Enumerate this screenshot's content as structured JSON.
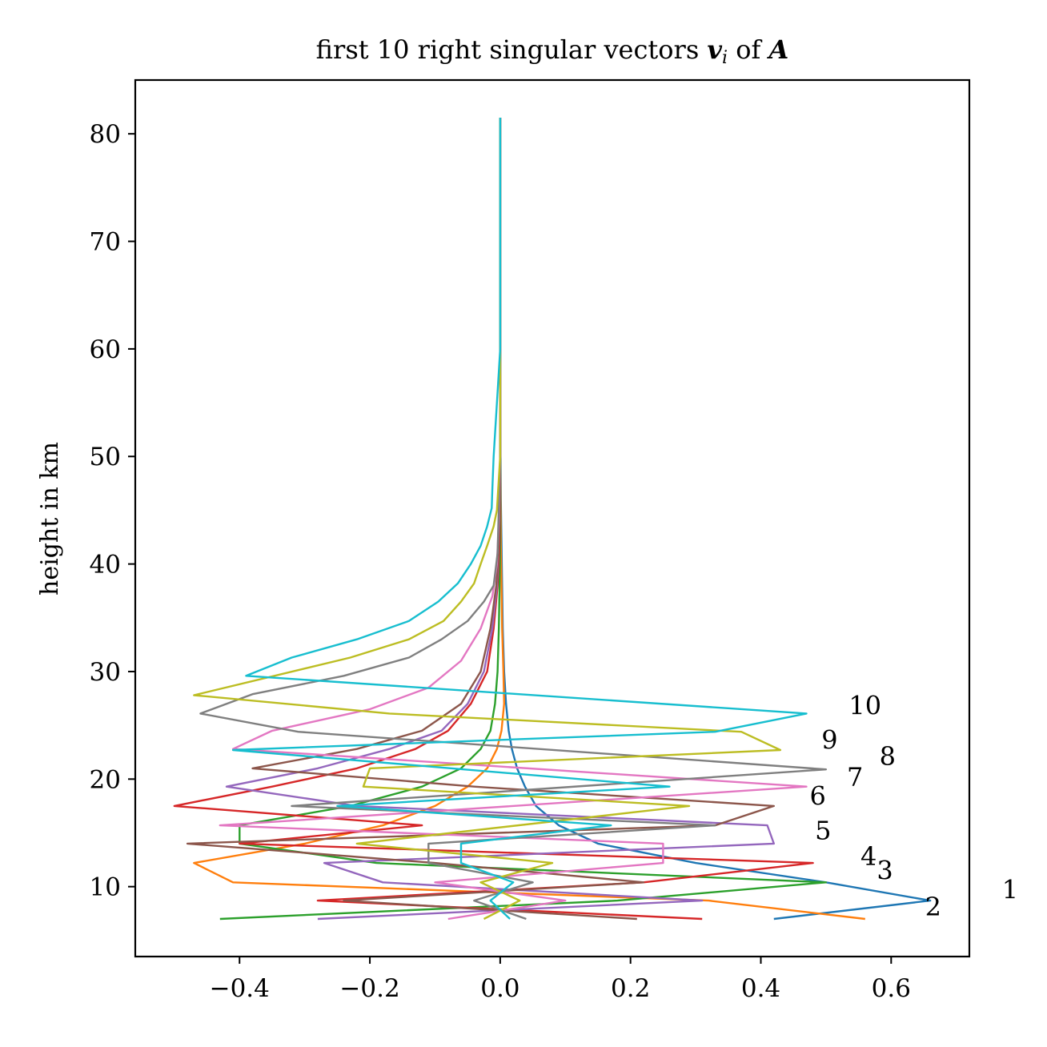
{
  "chart_data": {
    "type": "line",
    "title": "first 10 right singular vectors v_i of A",
    "title_parts": {
      "pre": "first 10 right singular vectors ",
      "v": "v",
      "i": "i",
      "mid": " of ",
      "A": "A"
    },
    "xlabel": "",
    "ylabel": "height in km",
    "xlim": [
      -0.56,
      0.72
    ],
    "ylim": [
      3.5,
      85
    ],
    "xticks": [
      -0.4,
      -0.2,
      0.0,
      0.2,
      0.4,
      0.6
    ],
    "xtick_labels": [
      "−0.4",
      "−0.2",
      "0.0",
      "0.2",
      "0.4",
      "0.6"
    ],
    "yticks": [
      10,
      20,
      30,
      40,
      50,
      60,
      70,
      80
    ],
    "ytick_labels": [
      "10",
      "20",
      "30",
      "40",
      "50",
      "60",
      "70",
      "80"
    ],
    "grid": false,
    "legend": "none",
    "series": [
      {
        "label": "1",
        "color": "#1f77b4",
        "label_pos": [
          0.77,
          8.9
        ],
        "points": [
          [
            0.42,
            7.0
          ],
          [
            0.66,
            8.7
          ],
          [
            0.5,
            10.4
          ],
          [
            0.3,
            12.2
          ],
          [
            0.15,
            14.0
          ],
          [
            0.09,
            15.7
          ],
          [
            0.055,
            17.5
          ],
          [
            0.038,
            19.3
          ],
          [
            0.026,
            21.0
          ],
          [
            0.018,
            22.8
          ],
          [
            0.013,
            24.5
          ],
          [
            0.009,
            27
          ],
          [
            0.006,
            30
          ],
          [
            0.004,
            34
          ],
          [
            0.003,
            38
          ],
          [
            0.002,
            42
          ],
          [
            0.001,
            46
          ],
          [
            0.0005,
            50
          ],
          [
            0.0003,
            55
          ],
          [
            0.0001,
            62
          ],
          [
            0,
            70
          ],
          [
            0,
            81.5
          ]
        ]
      },
      {
        "label": "2",
        "color": "#ff7f0e",
        "label_pos": [
          0.652,
          7.3
        ],
        "points": [
          [
            0.56,
            7.0
          ],
          [
            0.32,
            8.7
          ],
          [
            -0.41,
            10.4
          ],
          [
            -0.47,
            12.2
          ],
          [
            -0.3,
            14.0
          ],
          [
            -0.18,
            15.7
          ],
          [
            -0.1,
            17.5
          ],
          [
            -0.05,
            19.3
          ],
          [
            -0.02,
            21.0
          ],
          [
            -0.005,
            22.8
          ],
          [
            0.002,
            24.5
          ],
          [
            0.006,
            27
          ],
          [
            0.005,
            30
          ],
          [
            0.003,
            34
          ],
          [
            0.002,
            38
          ],
          [
            0.001,
            42
          ],
          [
            0.0005,
            46
          ],
          [
            0,
            50
          ],
          [
            0,
            60
          ],
          [
            0,
            81.5
          ]
        ]
      },
      {
        "label": "3",
        "color": "#2ca02c",
        "label_pos": [
          0.578,
          10.7
        ],
        "points": [
          [
            -0.43,
            7.0
          ],
          [
            0.18,
            8.7
          ],
          [
            0.5,
            10.4
          ],
          [
            -0.19,
            12.2
          ],
          [
            -0.4,
            14.0
          ],
          [
            -0.4,
            15.7
          ],
          [
            -0.23,
            17.5
          ],
          [
            -0.12,
            19.3
          ],
          [
            -0.06,
            21.0
          ],
          [
            -0.03,
            22.8
          ],
          [
            -0.015,
            24.5
          ],
          [
            -0.008,
            27
          ],
          [
            -0.004,
            30
          ],
          [
            -0.002,
            34
          ],
          [
            -0.001,
            38
          ],
          [
            0,
            42
          ],
          [
            0,
            50
          ],
          [
            0,
            81.5
          ]
        ]
      },
      {
        "label": "4",
        "color": "#d62728",
        "label_pos": [
          0.553,
          12.0
        ],
        "points": [
          [
            0.31,
            7.0
          ],
          [
            -0.28,
            8.7
          ],
          [
            0.22,
            10.4
          ],
          [
            0.48,
            12.2
          ],
          [
            -0.4,
            14.0
          ],
          [
            -0.12,
            15.7
          ],
          [
            -0.5,
            17.5
          ],
          [
            -0.35,
            19.3
          ],
          [
            -0.22,
            21.0
          ],
          [
            -0.13,
            22.8
          ],
          [
            -0.08,
            24.5
          ],
          [
            -0.045,
            27
          ],
          [
            -0.02,
            30
          ],
          [
            -0.01,
            34
          ],
          [
            -0.004,
            38
          ],
          [
            -0.001,
            42
          ],
          [
            0,
            50
          ],
          [
            0,
            81.5
          ]
        ]
      },
      {
        "label": "5",
        "color": "#9467bd",
        "label_pos": [
          0.483,
          14.4
        ],
        "points": [
          [
            -0.28,
            7.0
          ],
          [
            0.31,
            8.7
          ],
          [
            -0.18,
            10.4
          ],
          [
            -0.27,
            12.2
          ],
          [
            0.42,
            14.0
          ],
          [
            0.41,
            15.7
          ],
          [
            -0.22,
            17.5
          ],
          [
            -0.42,
            19.3
          ],
          [
            -0.28,
            21.0
          ],
          [
            -0.17,
            22.8
          ],
          [
            -0.09,
            24.5
          ],
          [
            -0.05,
            27
          ],
          [
            -0.025,
            30
          ],
          [
            -0.012,
            34
          ],
          [
            -0.005,
            38
          ],
          [
            -0.002,
            42
          ],
          [
            0,
            50
          ],
          [
            0,
            81.5
          ]
        ]
      },
      {
        "label": "6",
        "color": "#8c564b",
        "label_pos": [
          0.475,
          17.6
        ],
        "points": [
          [
            0.21,
            7.0
          ],
          [
            -0.24,
            8.7
          ],
          [
            0.22,
            10.4
          ],
          [
            -0.1,
            12.2
          ],
          [
            -0.48,
            14.0
          ],
          [
            0.33,
            15.7
          ],
          [
            0.42,
            17.5
          ],
          [
            -0.04,
            19.3
          ],
          [
            -0.38,
            21.0
          ],
          [
            -0.22,
            22.8
          ],
          [
            -0.12,
            24.5
          ],
          [
            -0.06,
            27
          ],
          [
            -0.03,
            30
          ],
          [
            -0.015,
            34
          ],
          [
            -0.006,
            38
          ],
          [
            -0.002,
            42
          ],
          [
            0,
            50
          ],
          [
            0,
            81.5
          ]
        ]
      },
      {
        "label": "7",
        "color": "#e377c2",
        "label_pos": [
          0.532,
          19.4
        ],
        "points": [
          [
            -0.08,
            7.0
          ],
          [
            0.1,
            8.7
          ],
          [
            -0.1,
            10.4
          ],
          [
            0.25,
            12.2
          ],
          [
            0.25,
            14.0
          ],
          [
            -0.43,
            15.7
          ],
          [
            0.47,
            19.3
          ],
          [
            -0.41,
            22.8
          ],
          [
            -0.35,
            24.5
          ],
          [
            -0.2,
            26.5
          ],
          [
            -0.11,
            28.5
          ],
          [
            -0.06,
            31
          ],
          [
            -0.03,
            34
          ],
          [
            -0.012,
            37
          ],
          [
            -0.005,
            40
          ],
          [
            -0.002,
            44
          ],
          [
            0,
            50
          ],
          [
            0,
            81.5
          ]
        ]
      },
      {
        "label": "8",
        "color": "#7f7f7f",
        "label_pos": [
          0.582,
          21.3
        ],
        "points": [
          [
            0.04,
            7.0
          ],
          [
            -0.04,
            8.7
          ],
          [
            0.05,
            10.4
          ],
          [
            -0.11,
            12.2
          ],
          [
            -0.11,
            14.0
          ],
          [
            0.33,
            15.7
          ],
          [
            -0.32,
            17.5
          ],
          [
            0.5,
            20.9
          ],
          [
            -0.31,
            24.4
          ],
          [
            -0.46,
            26.1
          ],
          [
            -0.38,
            27.9
          ],
          [
            -0.24,
            29.6
          ],
          [
            -0.14,
            31.3
          ],
          [
            -0.09,
            33
          ],
          [
            -0.05,
            34.7
          ],
          [
            -0.025,
            36.5
          ],
          [
            -0.01,
            38
          ],
          [
            -0.004,
            41
          ],
          [
            0,
            50
          ],
          [
            0,
            81.5
          ]
        ]
      },
      {
        "label": "9",
        "color": "#bcbd22",
        "label_pos": [
          0.493,
          22.8
        ],
        "points": [
          [
            -0.025,
            7.0
          ],
          [
            0.03,
            8.7
          ],
          [
            -0.03,
            10.4
          ],
          [
            0.08,
            12.2
          ],
          [
            -0.22,
            14.0
          ],
          [
            0.29,
            17.5
          ],
          [
            -0.21,
            19.3
          ],
          [
            -0.2,
            21.0
          ],
          [
            0.43,
            22.7
          ],
          [
            0.37,
            24.4
          ],
          [
            -0.17,
            26.1
          ],
          [
            -0.47,
            27.8
          ],
          [
            -0.23,
            31.3
          ],
          [
            -0.14,
            33
          ],
          [
            -0.087,
            34.7
          ],
          [
            -0.06,
            36.5
          ],
          [
            -0.04,
            38.2
          ],
          [
            -0.03,
            40
          ],
          [
            -0.02,
            41.7
          ],
          [
            -0.01,
            43.5
          ],
          [
            -0.005,
            45
          ],
          [
            -0.003,
            47
          ],
          [
            0,
            50
          ],
          [
            0,
            81.5
          ]
        ]
      },
      {
        "label": "10",
        "color": "#17becf",
        "label_pos": [
          0.535,
          26.0
        ],
        "points": [
          [
            0.015,
            7.0
          ],
          [
            -0.015,
            8.7
          ],
          [
            0.02,
            10.4
          ],
          [
            -0.06,
            12.2
          ],
          [
            -0.06,
            14.0
          ],
          [
            0.17,
            15.7
          ],
          [
            -0.25,
            17.5
          ],
          [
            0.26,
            19.3
          ],
          [
            -0.41,
            22.7
          ],
          [
            0.33,
            24.4
          ],
          [
            0.47,
            26.1
          ],
          [
            -0.39,
            29.6
          ],
          [
            -0.32,
            31.3
          ],
          [
            -0.22,
            33
          ],
          [
            -0.14,
            34.7
          ],
          [
            -0.095,
            36.5
          ],
          [
            -0.065,
            38.2
          ],
          [
            -0.045,
            40
          ],
          [
            -0.03,
            41.7
          ],
          [
            -0.02,
            43.5
          ],
          [
            -0.013,
            45.2
          ],
          [
            -0.012,
            47
          ],
          [
            -0.01,
            50
          ],
          [
            -0.005,
            55
          ],
          [
            0,
            60
          ],
          [
            0,
            81.5
          ]
        ]
      }
    ]
  }
}
